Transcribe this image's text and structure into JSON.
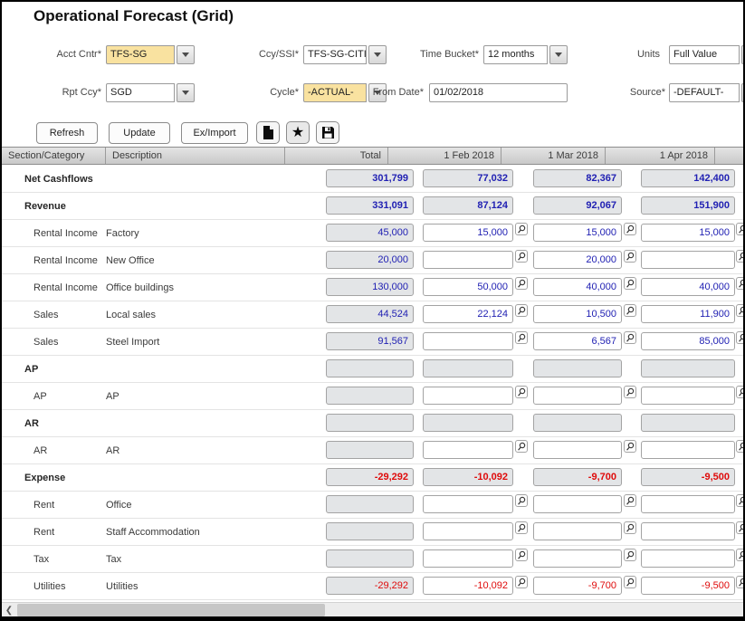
{
  "title": "Operational Forecast (Grid)",
  "colors": {
    "positive_value": "#2121b3",
    "negative_value": "#df0b0b",
    "highlight_field": "#f9e2a0",
    "readonly_cell": "#e3e5e7",
    "header_bg": "#d6d6d6"
  },
  "filters": {
    "acct_cntr": {
      "label": "Acct Cntr*",
      "value": "TFS-SG"
    },
    "ccy_ssi": {
      "label": "Ccy/SSI*",
      "value": "TFS-SG-CITI-SG-A"
    },
    "time_bucket": {
      "label": "Time Bucket*",
      "value": "12 months"
    },
    "units": {
      "label": "Units",
      "value": "Full Value"
    },
    "rpt_ccy": {
      "label": "Rpt Ccy*",
      "value": "SGD"
    },
    "cycle": {
      "label": "Cycle*",
      "value": "-ACTUAL-"
    },
    "from_date": {
      "label": "From Date*",
      "value": "01/02/2018"
    },
    "source": {
      "label": "Source*",
      "value": "-DEFAULT-"
    }
  },
  "toolbar": {
    "refresh_label": "Refresh",
    "update_label": "Update",
    "ex_import_label": "Ex/Import",
    "icons": [
      "new-document-icon",
      "favorite-star-icon",
      "save-icon"
    ]
  },
  "icons": {
    "star_glyph": "★",
    "scroll_left_glyph": "❮",
    "dropdown": "chevron-down-icon",
    "lookup": "magnifier-icon"
  },
  "grid": {
    "columns": [
      "Section/Category",
      "Description",
      "Total",
      "1 Feb 2018",
      "1 Mar 2018",
      "1 Apr 2018"
    ],
    "rows": [
      {
        "type": "section",
        "section": "Net Cashflows",
        "description": "",
        "values": [
          "301,799",
          "77,032",
          "82,367",
          "142,400"
        ],
        "color": "blue"
      },
      {
        "type": "section",
        "section": "Revenue",
        "description": "",
        "values": [
          "331,091",
          "87,124",
          "92,067",
          "151,900"
        ],
        "color": "blue"
      },
      {
        "type": "detail",
        "section": "Rental Income",
        "description": "Factory",
        "values": [
          "45,000",
          "15,000",
          "15,000",
          "15,000"
        ],
        "color": "blue"
      },
      {
        "type": "detail",
        "section": "Rental Income",
        "description": "New Office",
        "values": [
          "20,000",
          "",
          "20,000",
          ""
        ],
        "color": "blue"
      },
      {
        "type": "detail",
        "section": "Rental Income",
        "description": "Office buildings",
        "values": [
          "130,000",
          "50,000",
          "40,000",
          "40,000"
        ],
        "color": "blue"
      },
      {
        "type": "detail",
        "section": "Sales",
        "description": "Local sales",
        "values": [
          "44,524",
          "22,124",
          "10,500",
          "11,900"
        ],
        "color": "blue"
      },
      {
        "type": "detail",
        "section": "Sales",
        "description": "Steel Import",
        "values": [
          "91,567",
          "",
          "6,567",
          "85,000"
        ],
        "color": "blue"
      },
      {
        "type": "section",
        "section": "AP",
        "description": "",
        "values": [
          "",
          "",
          "",
          ""
        ],
        "color": "blue"
      },
      {
        "type": "detail",
        "section": "AP",
        "description": "AP",
        "values": [
          "",
          "",
          "",
          ""
        ],
        "color": "blue"
      },
      {
        "type": "section",
        "section": "AR",
        "description": "",
        "values": [
          "",
          "",
          "",
          ""
        ],
        "color": "blue"
      },
      {
        "type": "detail",
        "section": "AR",
        "description": "AR",
        "values": [
          "",
          "",
          "",
          ""
        ],
        "color": "blue"
      },
      {
        "type": "section",
        "section": "Expense",
        "description": "",
        "values": [
          "-29,292",
          "-10,092",
          "-9,700",
          "-9,500"
        ],
        "color": "red"
      },
      {
        "type": "detail",
        "section": "Rent",
        "description": "Office",
        "values": [
          "",
          "",
          "",
          ""
        ],
        "color": "blue"
      },
      {
        "type": "detail",
        "section": "Rent",
        "description": "Staff Accommodation",
        "values": [
          "",
          "",
          "",
          ""
        ],
        "color": "blue"
      },
      {
        "type": "detail",
        "section": "Tax",
        "description": "Tax",
        "values": [
          "",
          "",
          "",
          ""
        ],
        "color": "blue"
      },
      {
        "type": "detail",
        "section": "Utilities",
        "description": "Utilities",
        "values": [
          "-29,292",
          "-10,092",
          "-9,700",
          "-9,500"
        ],
        "color": "red"
      }
    ]
  }
}
